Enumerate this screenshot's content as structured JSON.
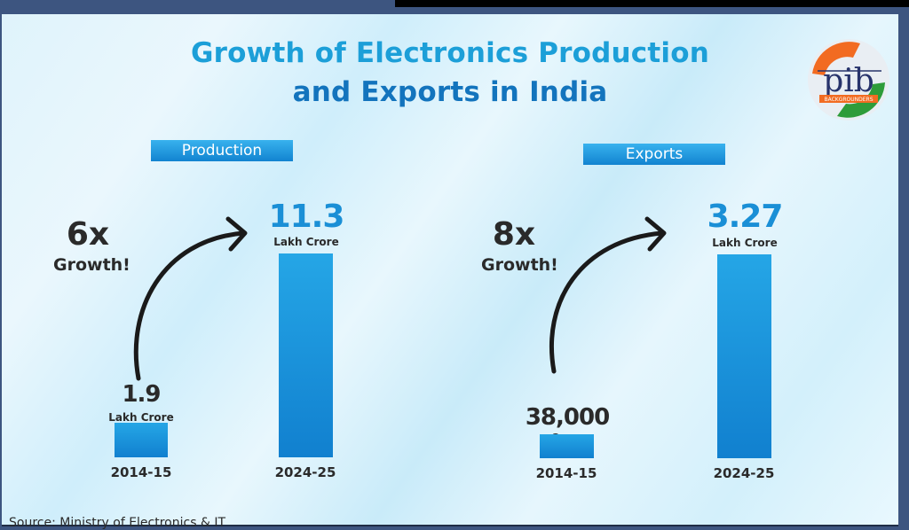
{
  "title_line1": "Growth of Electronics Production",
  "title_line2": "and Exports in India",
  "logo": {
    "text": "pib",
    "subtext": "BACKGROUNDERS",
    "colors": {
      "saffron": "#f26b21",
      "green": "#2e9c3a",
      "navy": "#27336b"
    }
  },
  "source": "Source: Ministry of Electronics & IT",
  "colors": {
    "bar": "#1a90d9",
    "title_light": "#1c9fd8",
    "title_dark": "#1374bd",
    "value_blue": "#1a8fd6"
  },
  "chart_data": [
    {
      "type": "bar",
      "title": "Production",
      "categories": [
        "2014-15",
        "2024-25"
      ],
      "values": [
        1.9,
        11.3
      ],
      "unit": "Lakh Crore",
      "value_labels": [
        "1.9",
        "11.3"
      ],
      "unit_labels": [
        "Lakh Crore",
        "Lakh Crore"
      ],
      "annotation": {
        "multiplier": "6x",
        "text": "Growth!"
      },
      "xlabel": "",
      "ylabel": "",
      "grid": false
    },
    {
      "type": "bar",
      "title": "Exports",
      "categories": [
        "2014-15",
        "2024-25"
      ],
      "values": [
        0.38,
        3.27
      ],
      "unit": "Lakh Crore",
      "value_labels": [
        "38,000",
        "3.27"
      ],
      "unit_labels": [
        "Crore",
        "Lakh Crore"
      ],
      "annotation": {
        "multiplier": "8x",
        "text": "Growth!"
      },
      "xlabel": "",
      "ylabel": "",
      "grid": false
    }
  ]
}
